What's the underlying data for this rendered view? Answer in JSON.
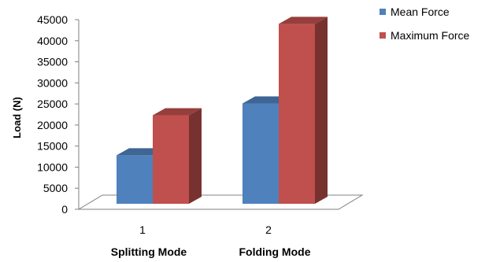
{
  "chart_data": {
    "type": "bar",
    "style": "3d-clustered-column",
    "categories": [
      "1",
      "2"
    ],
    "category_group_labels": [
      "Splitting Mode",
      "Folding Mode"
    ],
    "series": [
      {
        "name": "Mean Force",
        "values": [
          11500,
          23800
        ],
        "color": "#4F81BD"
      },
      {
        "name": "Maximum Force",
        "values": [
          21000,
          42700
        ],
        "color": "#C0504D"
      }
    ],
    "title": "",
    "xlabel": "",
    "ylabel": "Load (N)",
    "ylim": [
      0,
      45000
    ],
    "yticks": [
      "0",
      "5000",
      "10000",
      "15000",
      "20000",
      "25000",
      "30000",
      "35000",
      "40000",
      "45000"
    ],
    "grid": false,
    "legend_position": "right"
  }
}
